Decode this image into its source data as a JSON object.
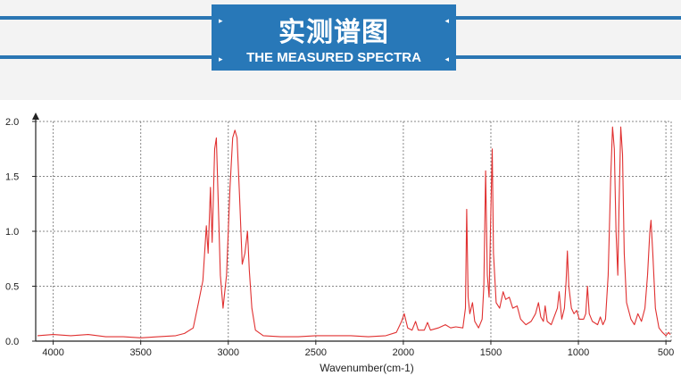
{
  "header": {
    "title_cn": "实测谱图",
    "title_en": "THE MEASURED SPECTRA",
    "accent_color": "#2a76b3",
    "box_color": "#2878b8",
    "decor_icons": [
      "arrow-right-icon",
      "arrow-left-icon"
    ]
  },
  "chart_data": {
    "type": "line",
    "title": "",
    "xlabel": "Wavenumber(cm-1)",
    "ylabel": "",
    "xlim": [
      4100,
      470
    ],
    "ylim": [
      0,
      2.0
    ],
    "x_reversed": true,
    "grid": true,
    "grid_style": "dotted",
    "line_color": "#e03030",
    "x_ticks": [
      "4000",
      "3500",
      "3000",
      "2500",
      "2000",
      "1500",
      "1000",
      "500"
    ],
    "y_ticks": [
      "0.0",
      "0.5",
      "1.0",
      "1.5",
      "2.0"
    ],
    "x_tick_values": [
      4000,
      3500,
      3000,
      2500,
      2000,
      1500,
      1000,
      500
    ],
    "y_tick_values": [
      0,
      0.5,
      1.0,
      1.5,
      2.0
    ],
    "series": [
      {
        "values": [
          [
            4090,
            0.05
          ],
          [
            4000,
            0.06
          ],
          [
            3900,
            0.05
          ],
          [
            3800,
            0.06
          ],
          [
            3700,
            0.04
          ],
          [
            3600,
            0.04
          ],
          [
            3500,
            0.03
          ],
          [
            3400,
            0.04
          ],
          [
            3300,
            0.05
          ],
          [
            3250,
            0.07
          ],
          [
            3200,
            0.12
          ],
          [
            3170,
            0.35
          ],
          [
            3145,
            0.55
          ],
          [
            3125,
            1.05
          ],
          [
            3115,
            0.8
          ],
          [
            3102,
            1.4
          ],
          [
            3092,
            0.9
          ],
          [
            3078,
            1.75
          ],
          [
            3068,
            1.85
          ],
          [
            3058,
            1.3
          ],
          [
            3045,
            0.6
          ],
          [
            3030,
            0.3
          ],
          [
            3010,
            0.6
          ],
          [
            2990,
            1.4
          ],
          [
            2975,
            1.85
          ],
          [
            2962,
            1.92
          ],
          [
            2950,
            1.85
          ],
          [
            2935,
            1.3
          ],
          [
            2920,
            0.7
          ],
          [
            2905,
            0.8
          ],
          [
            2890,
            1.0
          ],
          [
            2880,
            0.65
          ],
          [
            2865,
            0.3
          ],
          [
            2845,
            0.1
          ],
          [
            2800,
            0.05
          ],
          [
            2700,
            0.04
          ],
          [
            2600,
            0.04
          ],
          [
            2500,
            0.05
          ],
          [
            2400,
            0.05
          ],
          [
            2300,
            0.05
          ],
          [
            2200,
            0.04
          ],
          [
            2100,
            0.05
          ],
          [
            2040,
            0.08
          ],
          [
            2010,
            0.18
          ],
          [
            1995,
            0.25
          ],
          [
            1975,
            0.12
          ],
          [
            1950,
            0.1
          ],
          [
            1930,
            0.18
          ],
          [
            1915,
            0.1
          ],
          [
            1880,
            0.1
          ],
          [
            1862,
            0.17
          ],
          [
            1845,
            0.1
          ],
          [
            1800,
            0.12
          ],
          [
            1760,
            0.15
          ],
          [
            1730,
            0.12
          ],
          [
            1700,
            0.13
          ],
          [
            1660,
            0.12
          ],
          [
            1645,
            0.3
          ],
          [
            1638,
            1.2
          ],
          [
            1630,
            0.4
          ],
          [
            1620,
            0.25
          ],
          [
            1605,
            0.35
          ],
          [
            1592,
            0.18
          ],
          [
            1570,
            0.12
          ],
          [
            1550,
            0.2
          ],
          [
            1540,
            0.5
          ],
          [
            1530,
            1.55
          ],
          [
            1520,
            0.6
          ],
          [
            1510,
            0.4
          ],
          [
            1500,
            1.2
          ],
          [
            1492,
            1.75
          ],
          [
            1485,
            0.8
          ],
          [
            1470,
            0.35
          ],
          [
            1450,
            0.3
          ],
          [
            1430,
            0.45
          ],
          [
            1415,
            0.38
          ],
          [
            1395,
            0.4
          ],
          [
            1375,
            0.3
          ],
          [
            1350,
            0.32
          ],
          [
            1330,
            0.2
          ],
          [
            1300,
            0.15
          ],
          [
            1270,
            0.18
          ],
          [
            1245,
            0.25
          ],
          [
            1228,
            0.35
          ],
          [
            1215,
            0.22
          ],
          [
            1200,
            0.18
          ],
          [
            1190,
            0.32
          ],
          [
            1178,
            0.18
          ],
          [
            1155,
            0.15
          ],
          [
            1120,
            0.3
          ],
          [
            1110,
            0.45
          ],
          [
            1095,
            0.2
          ],
          [
            1080,
            0.3
          ],
          [
            1070,
            0.55
          ],
          [
            1063,
            0.82
          ],
          [
            1055,
            0.5
          ],
          [
            1040,
            0.3
          ],
          [
            1025,
            0.25
          ],
          [
            1010,
            0.28
          ],
          [
            995,
            0.2
          ],
          [
            970,
            0.2
          ],
          [
            958,
            0.25
          ],
          [
            948,
            0.5
          ],
          [
            938,
            0.25
          ],
          [
            920,
            0.18
          ],
          [
            890,
            0.15
          ],
          [
            875,
            0.22
          ],
          [
            860,
            0.15
          ],
          [
            845,
            0.2
          ],
          [
            830,
            0.6
          ],
          [
            815,
            1.5
          ],
          [
            805,
            1.95
          ],
          [
            795,
            1.75
          ],
          [
            785,
            1.0
          ],
          [
            775,
            0.6
          ],
          [
            768,
            1.2
          ],
          [
            758,
            1.95
          ],
          [
            748,
            1.7
          ],
          [
            738,
            0.8
          ],
          [
            725,
            0.35
          ],
          [
            700,
            0.2
          ],
          [
            680,
            0.15
          ],
          [
            660,
            0.25
          ],
          [
            640,
            0.18
          ],
          [
            620,
            0.3
          ],
          [
            605,
            0.6
          ],
          [
            592,
            1.0
          ],
          [
            585,
            1.1
          ],
          [
            575,
            0.8
          ],
          [
            560,
            0.3
          ],
          [
            540,
            0.12
          ],
          [
            520,
            0.08
          ],
          [
            500,
            0.05
          ],
          [
            485,
            0.08
          ],
          [
            475,
            0.06
          ]
        ]
      }
    ]
  }
}
